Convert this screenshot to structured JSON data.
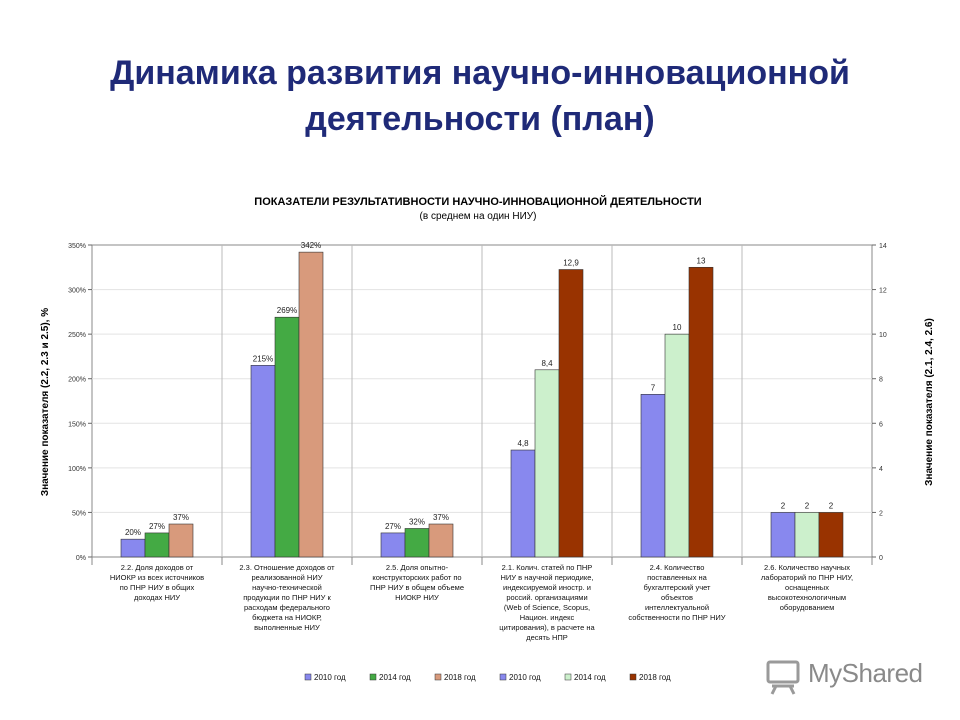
{
  "slide": {
    "title_line1": "Динамика развития научно-инновационной",
    "title_line2": "деятельности (план)"
  },
  "watermark": {
    "text": "MyShared",
    "icon": "presentation-board-icon"
  },
  "chart_data": {
    "type": "bar",
    "title": "ПОКАЗАТЕЛИ РЕЗУЛЬТАТИВНОСТИ НАУЧНО-ИННОВАЦИОННОЙ ДЕЯТЕЛЬНОСТИ",
    "subtitle": "(в среднем на один НИУ)",
    "y_left": {
      "label": "Значение  показателя (2.2, 2.3 и 2.5), %",
      "min": 0,
      "max": 350,
      "step": 50,
      "ticks": [
        "0%",
        "50%",
        "100%",
        "150%",
        "200%",
        "250%",
        "300%",
        "350%"
      ]
    },
    "y_right": {
      "label": "Значение показателя (2.1, 2.4, 2.6)",
      "min": 0,
      "max": 14,
      "step": 2,
      "ticks": [
        "0",
        "2",
        "4",
        "6",
        "8",
        "10",
        "12",
        "14"
      ]
    },
    "grid": true,
    "legend_position": "bottom",
    "legend": [
      {
        "name": "2010 год",
        "color": "#8888ee"
      },
      {
        "name": "2014 год",
        "color": "#44aa44"
      },
      {
        "name": "2018 год",
        "color": "#d89a7c"
      },
      {
        "name": "2010 год",
        "color": "#8888ee"
      },
      {
        "name": "2014 год",
        "color": "#ccf0cc"
      },
      {
        "name": "2018 год",
        "color": "#993300"
      }
    ],
    "groups": [
      {
        "axis": "left",
        "label_lines": [
          "2.2. Доля доходов от",
          "НИОКР из всех источников",
          "по ПНР НИУ в общих",
          "доходах НИУ"
        ],
        "bars": [
          {
            "series": "2010 год",
            "value": 20,
            "label": "20%",
            "color": "#8888ee"
          },
          {
            "series": "2014 год",
            "value": 27,
            "label": "27%",
            "color": "#44aa44"
          },
          {
            "series": "2018 год",
            "value": 37,
            "label": "37%",
            "color": "#d89a7c"
          }
        ]
      },
      {
        "axis": "left",
        "label_lines": [
          "2.3. Отношение доходов от",
          "реализованной НИУ",
          "научно-технической",
          "продукции по ПНР НИУ к",
          "расходам федерального",
          "бюджета на НИОКР,",
          "выполненные НИУ"
        ],
        "bars": [
          {
            "series": "2010 год",
            "value": 215,
            "label": "215%",
            "color": "#8888ee"
          },
          {
            "series": "2014 год",
            "value": 269,
            "label": "269%",
            "color": "#44aa44"
          },
          {
            "series": "2018 год",
            "value": 342,
            "label": "342%",
            "color": "#d89a7c"
          }
        ]
      },
      {
        "axis": "left",
        "label_lines": [
          "2.5. Доля опытно-",
          "конструкторских работ по",
          "ПНР НИУ в общем объеме",
          "НИОКР НИУ"
        ],
        "bars": [
          {
            "series": "2010 год",
            "value": 27,
            "label": "27%",
            "color": "#8888ee"
          },
          {
            "series": "2014 год",
            "value": 32,
            "label": "32%",
            "color": "#44aa44"
          },
          {
            "series": "2018 год",
            "value": 37,
            "label": "37%",
            "color": "#d89a7c"
          }
        ]
      },
      {
        "axis": "right",
        "label_lines": [
          "2.1. Колич. статей по ПНР",
          "НИУ в научной периодике,",
          "индексируемой иностр. и",
          "россий. организациями",
          "(Web of Science, Scopus,",
          "Национ. индекс",
          "цитирования), в расчете на",
          "десять НПР"
        ],
        "bars": [
          {
            "series": "2010 год",
            "value": 4.8,
            "label": "4,8",
            "color": "#8888ee"
          },
          {
            "series": "2014 год",
            "value": 8.4,
            "label": "8,4",
            "color": "#ccf0cc"
          },
          {
            "series": "2018 год",
            "value": 12.9,
            "label": "12,9",
            "color": "#993300"
          }
        ]
      },
      {
        "axis": "right",
        "label_lines": [
          "2.4. Количество",
          "поставленных на",
          "бухгалтерский учет",
          "объектов",
          "интеллектуальной",
          "собственности по ПНР НИУ"
        ],
        "bars": [
          {
            "series": "2010 год",
            "value": 7.3,
            "label": "7",
            "color": "#8888ee"
          },
          {
            "series": "2014 год",
            "value": 10,
            "label": "10",
            "color": "#ccf0cc"
          },
          {
            "series": "2018 год",
            "value": 13,
            "label": "13",
            "color": "#993300"
          }
        ]
      },
      {
        "axis": "right",
        "label_lines": [
          "2.6. Количество научных",
          "лабораторий по ПНР НИУ,",
          "оснащенных",
          "высокотехнологичным",
          "оборудованием"
        ],
        "bars": [
          {
            "series": "2010 год",
            "value": 2,
            "label": "2",
            "color": "#8888ee"
          },
          {
            "series": "2014 год",
            "value": 2,
            "label": "2",
            "color": "#ccf0cc"
          },
          {
            "series": "2018 год",
            "value": 2,
            "label": "2",
            "color": "#993300"
          }
        ]
      }
    ]
  }
}
